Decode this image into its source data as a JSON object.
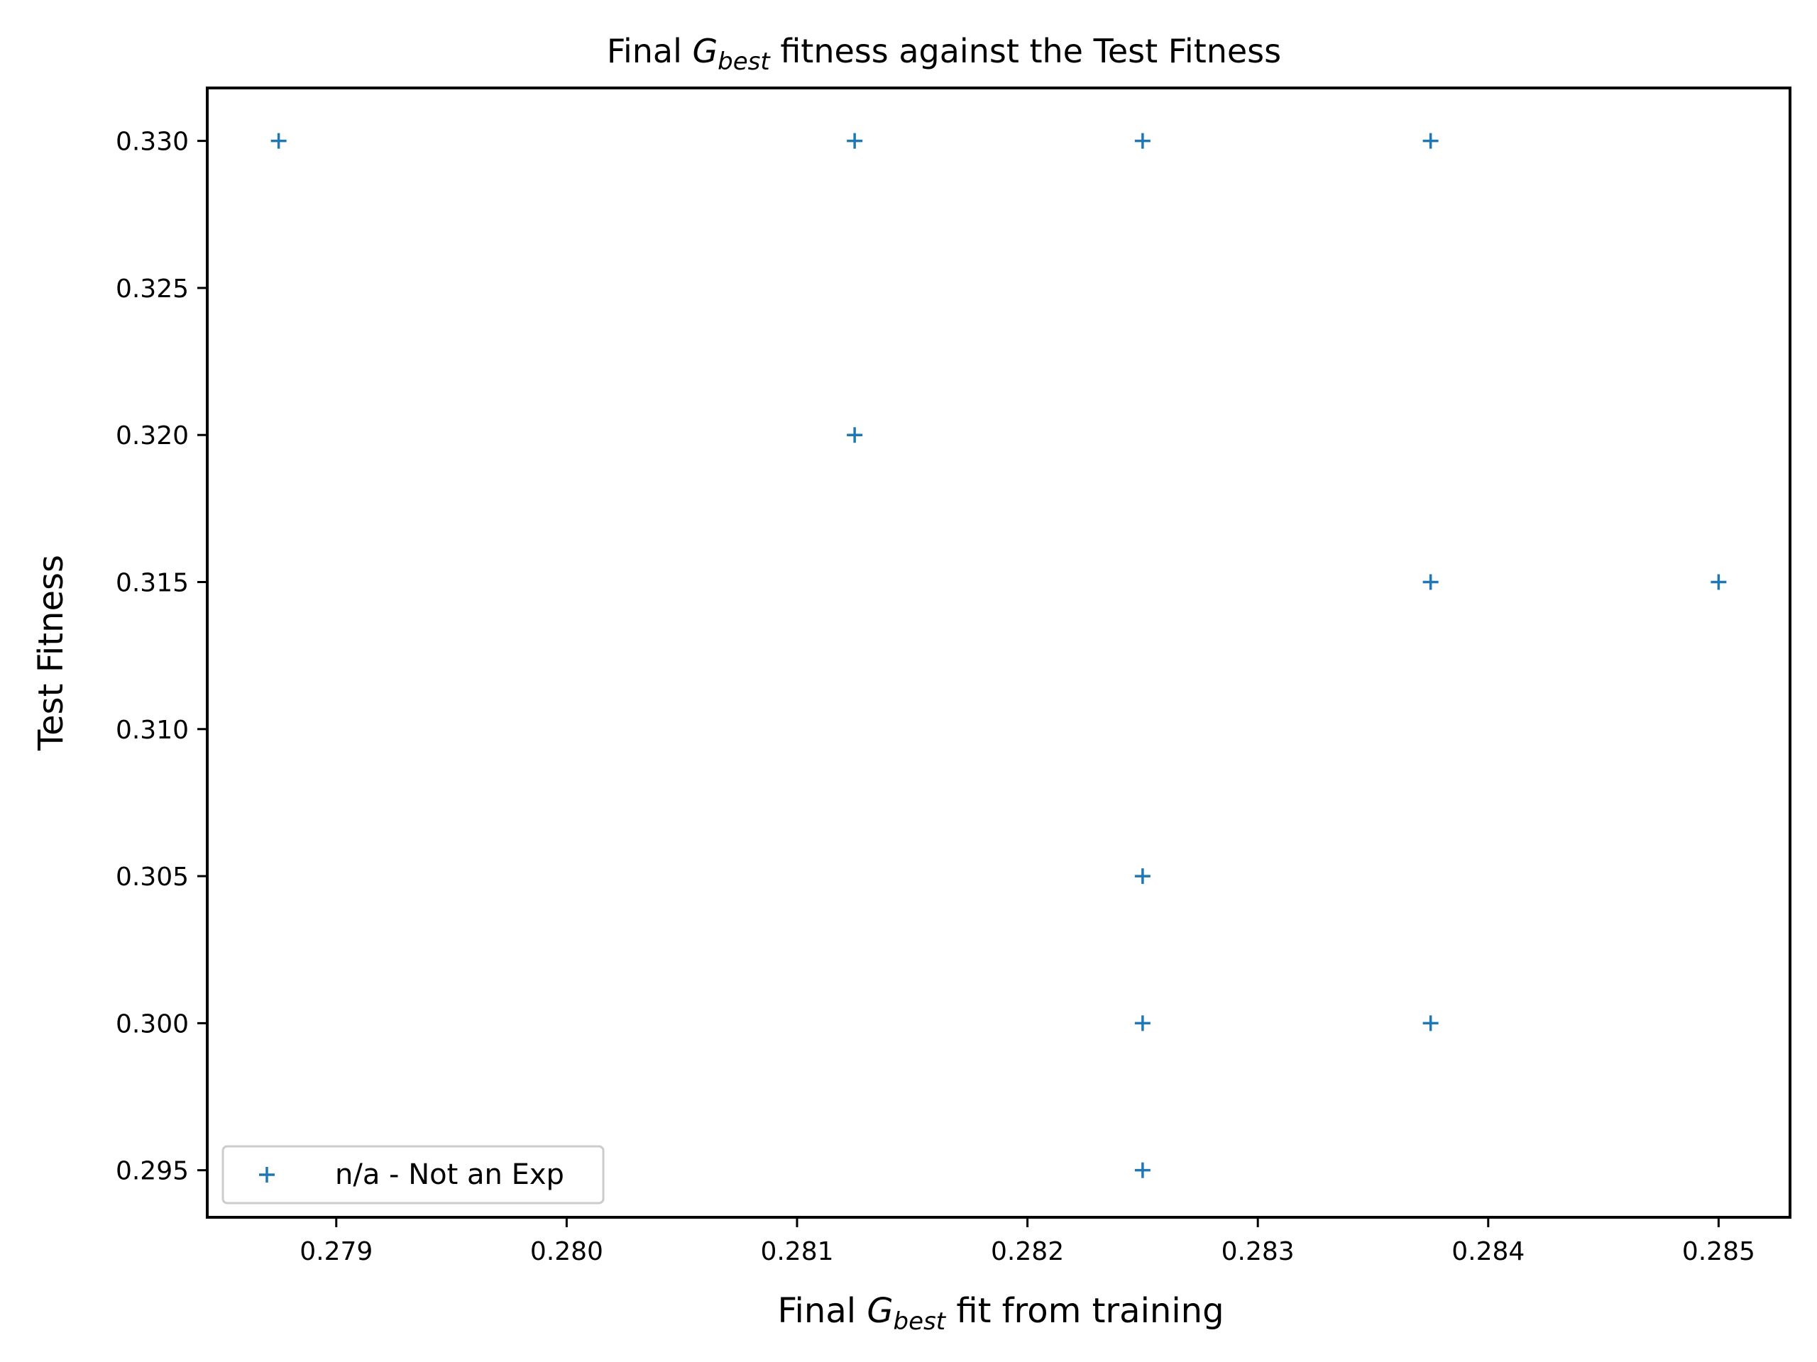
{
  "chart_data": {
    "type": "scatter",
    "title": {
      "prefix": "Final ",
      "var": "G",
      "sub": "best",
      "suffix": " fitness against the Test Fitness"
    },
    "xlabel": {
      "prefix": "Final ",
      "var": "G",
      "sub": "best",
      "suffix": " fit from training"
    },
    "ylabel": "Test Fitness",
    "xlim": [
      0.27844,
      0.28531
    ],
    "ylim": [
      0.2934,
      0.3318
    ],
    "xticks": [
      0.279,
      0.28,
      0.281,
      0.282,
      0.283,
      0.284,
      0.285
    ],
    "xtick_labels": [
      "0.279",
      "0.280",
      "0.281",
      "0.282",
      "0.283",
      "0.284",
      "0.285"
    ],
    "yticks": [
      0.295,
      0.3,
      0.305,
      0.31,
      0.315,
      0.32,
      0.325,
      0.33
    ],
    "ytick_labels": [
      "0.295",
      "0.300",
      "0.305",
      "0.310",
      "0.315",
      "0.320",
      "0.325",
      "0.330"
    ],
    "grid": false,
    "legend_position": "lower-left",
    "marker": "+",
    "series": [
      {
        "name": "n/a - Not an Exp",
        "color": "#1f77b4",
        "points": [
          {
            "x": 0.27875,
            "y": 0.33
          },
          {
            "x": 0.28125,
            "y": 0.33
          },
          {
            "x": 0.2825,
            "y": 0.33
          },
          {
            "x": 0.28375,
            "y": 0.33
          },
          {
            "x": 0.28125,
            "y": 0.32
          },
          {
            "x": 0.28375,
            "y": 0.315
          },
          {
            "x": 0.285,
            "y": 0.315
          },
          {
            "x": 0.2825,
            "y": 0.305
          },
          {
            "x": 0.2825,
            "y": 0.3
          },
          {
            "x": 0.28375,
            "y": 0.3
          },
          {
            "x": 0.2825,
            "y": 0.295
          }
        ]
      }
    ]
  }
}
